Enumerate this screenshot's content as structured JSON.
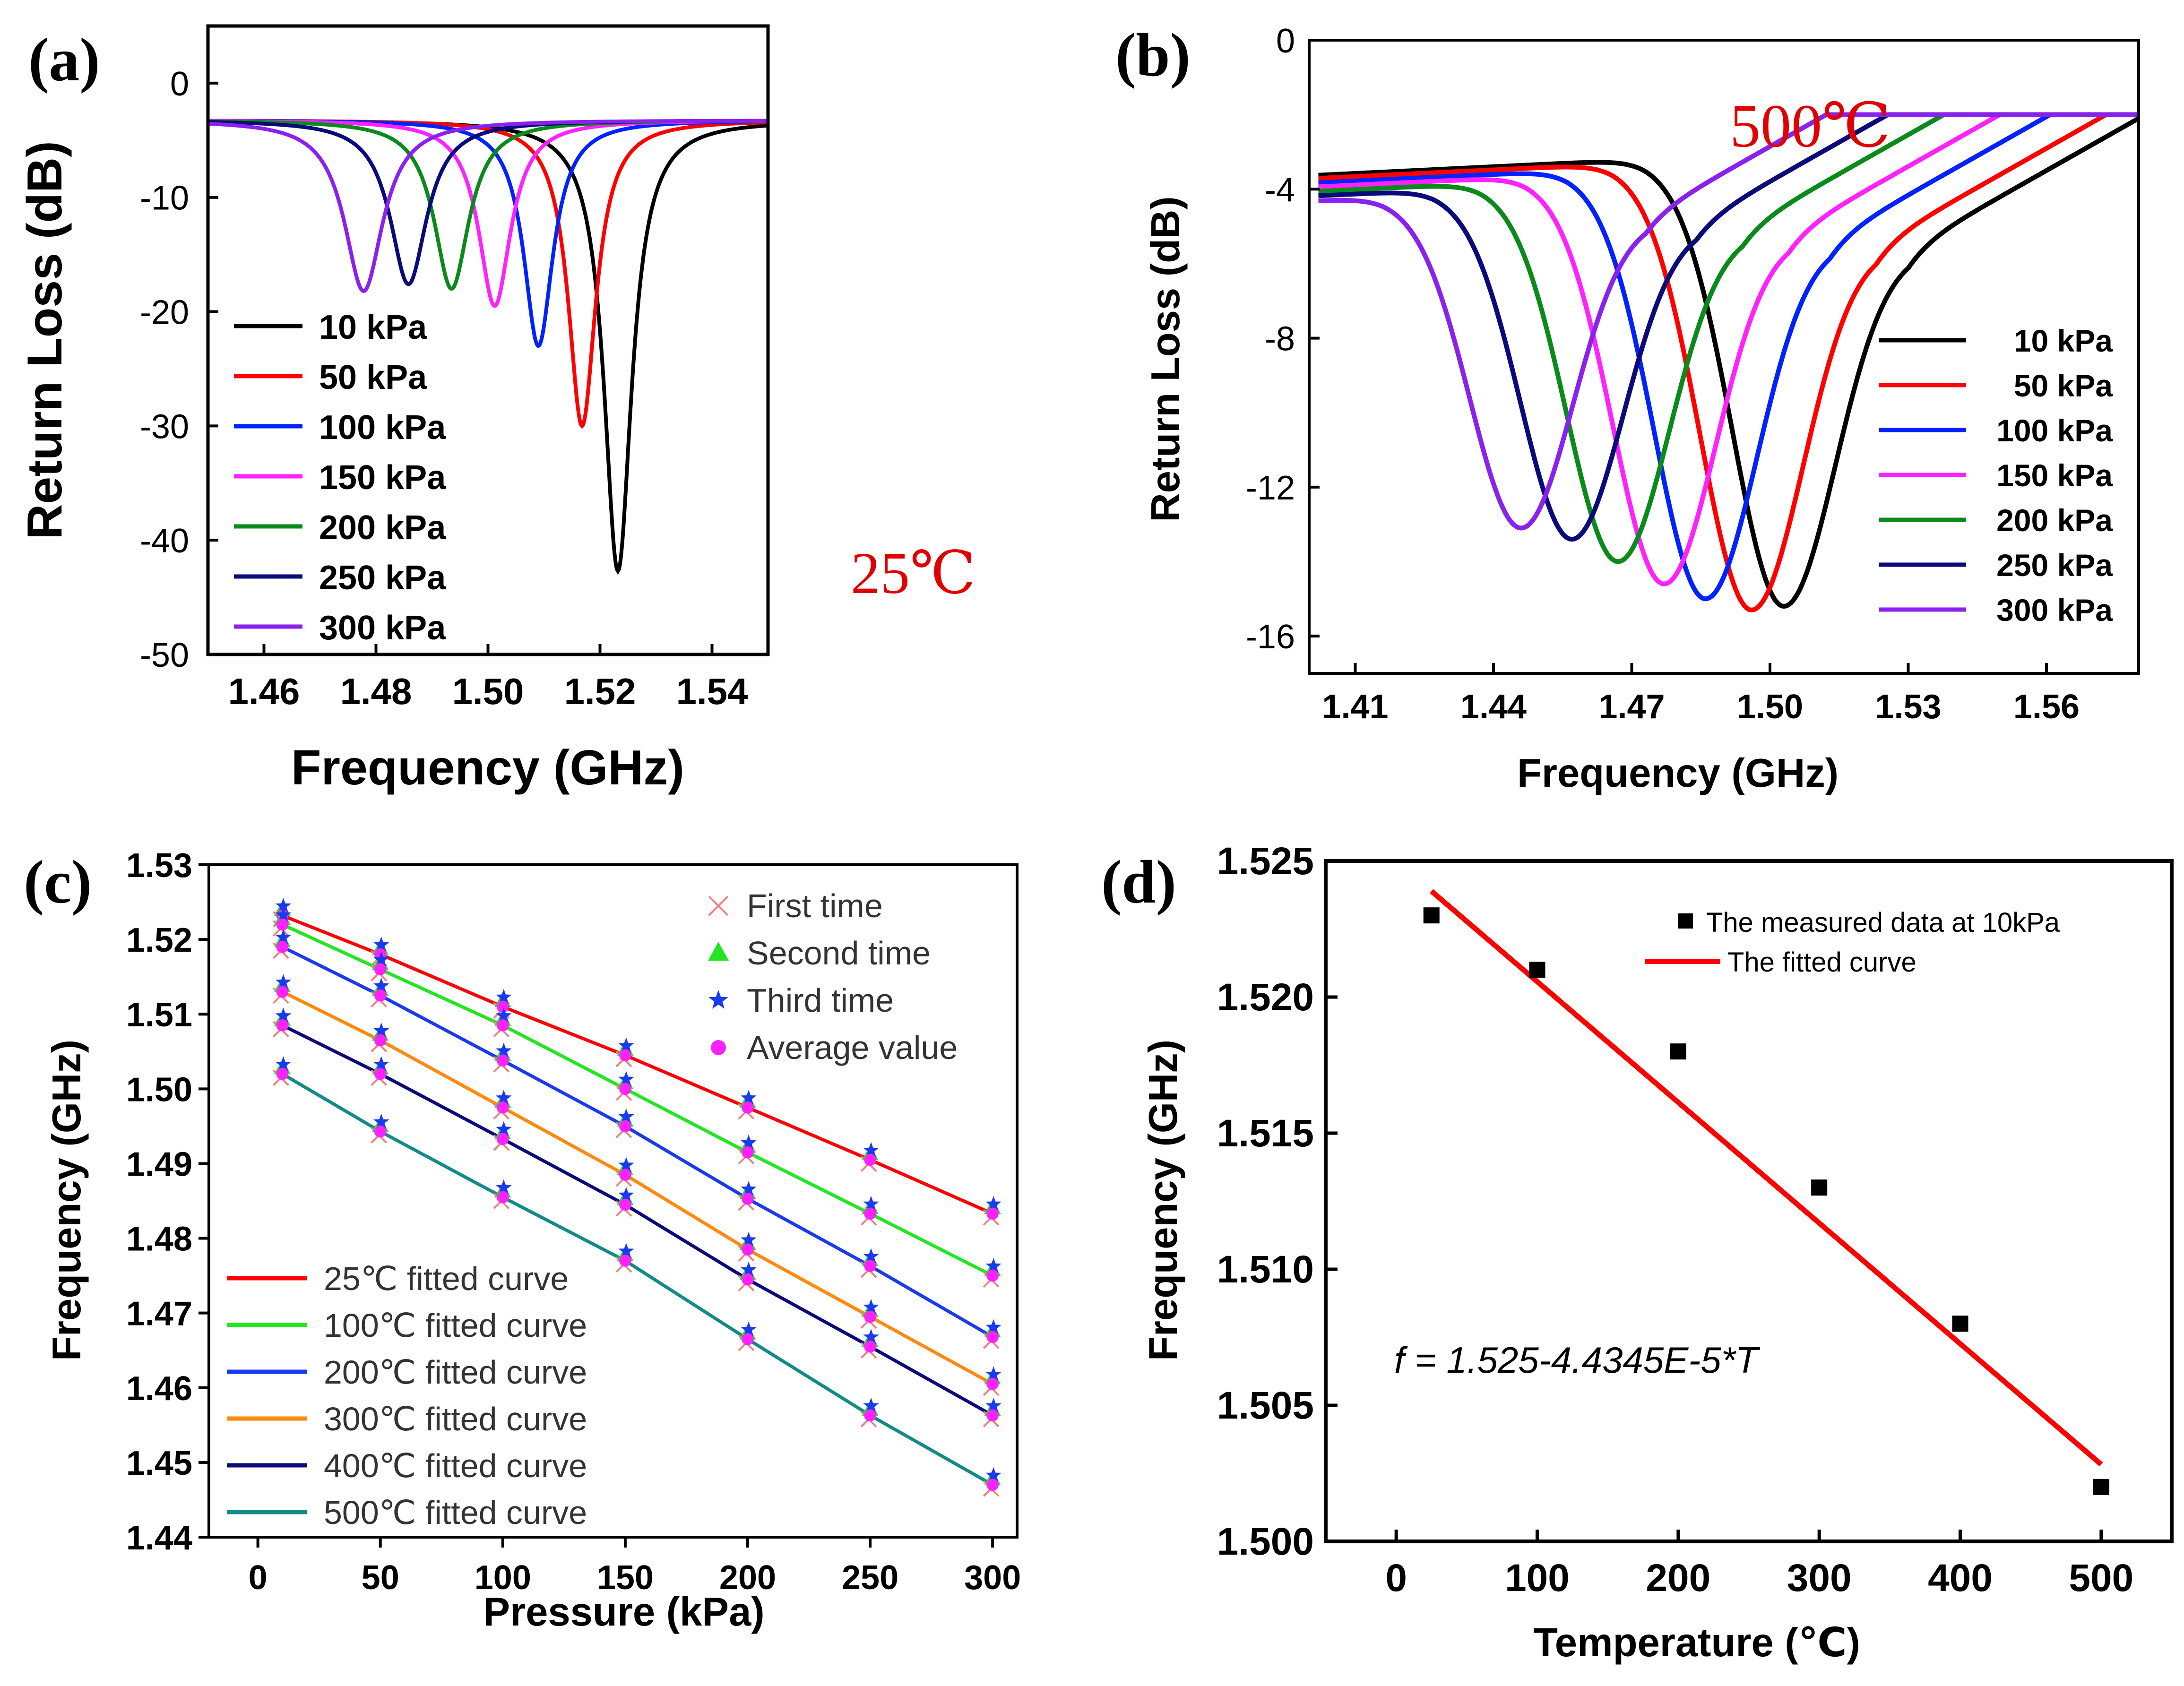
{
  "panels": [
    "(a)",
    "(b)",
    "(c)",
    "(d)"
  ],
  "colors": {
    "black": "#000000",
    "red": "#ff0000",
    "blue": "#0022ff",
    "magenta": "#ff22ff",
    "green": "#0a8a1a",
    "navy": "#0a0a7a",
    "purple": "#8a22ee",
    "lime": "#22e622",
    "royal": "#1a3aee",
    "orange": "#ff8a10",
    "teal": "#138a8a",
    "annotation": "#e00000"
  },
  "chart_data": [
    {
      "panel": "(a)",
      "type": "line",
      "xlabel": "Frequency (GHz)",
      "ylabel": "Return Loss (dB)",
      "xlim": [
        1.45,
        1.55
      ],
      "ylim": [
        -50,
        5
      ],
      "xticks": [
        "1.46",
        "1.48",
        "1.50",
        "1.52",
        "1.54"
      ],
      "yticks": [
        "0",
        "-10",
        "-20",
        "-30",
        "-40",
        "-50"
      ],
      "annotation": "25℃",
      "legend_position": "bottom-left",
      "series": [
        {
          "name": "10 kPa",
          "color": "#000000",
          "f0": 1.5232,
          "depth": -42.7,
          "baseline": -3.2,
          "width": 0.003
        },
        {
          "name": "50 kPa",
          "color": "#ff0000",
          "f0": 1.5168,
          "depth": -30.0,
          "baseline": -3.2,
          "width": 0.003
        },
        {
          "name": "100 kPa",
          "color": "#0022ff",
          "f0": 1.509,
          "depth": -23.0,
          "baseline": -3.2,
          "width": 0.0032
        },
        {
          "name": "150 kPa",
          "color": "#ff22ff",
          "f0": 1.5012,
          "depth": -19.5,
          "baseline": -3.2,
          "width": 0.0035
        },
        {
          "name": "200 kPa",
          "color": "#0a8a1a",
          "f0": 1.4935,
          "depth": -18.0,
          "baseline": -3.2,
          "width": 0.0038
        },
        {
          "name": "250 kPa",
          "color": "#0a0a7a",
          "f0": 1.4858,
          "depth": -17.6,
          "baseline": -3.2,
          "width": 0.004
        },
        {
          "name": "300 kPa",
          "color": "#8a22ee",
          "f0": 1.4778,
          "depth": -18.2,
          "baseline": -3.2,
          "width": 0.0042
        }
      ]
    },
    {
      "panel": "(b)",
      "type": "line",
      "xlabel": "Frequency (GHz)",
      "ylabel": "Return Loss (dB)",
      "xlim": [
        1.4,
        1.58
      ],
      "ylim": [
        -17,
        0
      ],
      "xticks": [
        "1.41",
        "1.44",
        "1.47",
        "1.50",
        "1.53",
        "1.56"
      ],
      "yticks": [
        "0",
        "-4",
        "-8",
        "-12",
        "-16"
      ],
      "annotation": "500℃",
      "legend_position": "bottom-right",
      "series": [
        {
          "name": "10 kPa",
          "color": "#000000",
          "f0": 1.503,
          "depth": -15.2,
          "w": 0.015
        },
        {
          "name": "50 kPa",
          "color": "#ff0000",
          "f0": 1.496,
          "depth": -15.3,
          "w": 0.015
        },
        {
          "name": "100 kPa",
          "color": "#0022ff",
          "f0": 1.486,
          "depth": -15.0,
          "w": 0.015
        },
        {
          "name": "150 kPa",
          "color": "#ff22ff",
          "f0": 1.477,
          "depth": -14.6,
          "w": 0.015
        },
        {
          "name": "200 kPa",
          "color": "#0a8a1a",
          "f0": 1.467,
          "depth": -14.0,
          "w": 0.015
        },
        {
          "name": "250 kPa",
          "color": "#0a0a7a",
          "f0": 1.457,
          "depth": -13.4,
          "w": 0.015
        },
        {
          "name": "300 kPa",
          "color": "#8a22ee",
          "f0": 1.446,
          "depth": -13.1,
          "w": 0.015
        }
      ]
    },
    {
      "panel": "(c)",
      "type": "scatter",
      "xlabel": "Pressure (kPa)",
      "ylabel": "Frequency (GHz)",
      "xlim": [
        -20,
        310
      ],
      "ylim": [
        1.44,
        1.53
      ],
      "xticks": [
        0,
        50,
        100,
        150,
        200,
        250,
        300
      ],
      "yticks": [
        "1.44",
        "1.45",
        "1.46",
        "1.47",
        "1.48",
        "1.49",
        "1.50",
        "1.51",
        "1.52",
        "1.53"
      ],
      "x": [
        10,
        50,
        100,
        150,
        200,
        250,
        300
      ],
      "marker_legend": [
        {
          "name": "First time",
          "marker": "x",
          "color": "#f08080"
        },
        {
          "name": "Second time",
          "marker": "triangle",
          "color": "#22e622"
        },
        {
          "name": "Third time",
          "marker": "star",
          "color": "#1a3aee"
        },
        {
          "name": "Average value",
          "marker": "circle",
          "color": "#ff22ff"
        }
      ],
      "fits": [
        {
          "name": "25℃ fitted curve",
          "color": "#ff0000",
          "y": [
            1.5232,
            1.518,
            1.511,
            1.5045,
            1.4975,
            1.4905,
            1.4833
          ]
        },
        {
          "name": "100℃ fitted curve",
          "color": "#22e622",
          "y": [
            1.522,
            1.516,
            1.5085,
            1.5,
            1.4915,
            1.4833,
            1.475
          ]
        },
        {
          "name": "200℃ fitted curve",
          "color": "#1a3aee",
          "y": [
            1.519,
            1.5125,
            1.5038,
            1.495,
            1.4853,
            1.4763,
            1.4668
          ]
        },
        {
          "name": "300℃ fitted curve",
          "color": "#ff8a10",
          "y": [
            1.513,
            1.5065,
            1.4975,
            1.4885,
            1.4785,
            1.4695,
            1.4605
          ]
        },
        {
          "name": "400℃ fitted curve",
          "color": "#0a0a7a",
          "y": [
            1.5085,
            1.502,
            1.4933,
            1.4845,
            1.4745,
            1.4655,
            1.4563
          ]
        },
        {
          "name": "500℃ fitted curve",
          "color": "#138a8a",
          "y": [
            1.502,
            1.4943,
            1.4855,
            1.477,
            1.4665,
            1.4563,
            1.447
          ]
        }
      ]
    },
    {
      "panel": "(d)",
      "type": "scatter",
      "xlabel": "Temperature (℃)",
      "ylabel": "Frequency (GHz)",
      "xlim": [
        -50,
        550
      ],
      "ylim": [
        1.5,
        1.525
      ],
      "xticks": [
        0,
        100,
        200,
        300,
        400,
        500
      ],
      "yticks": [
        "1.500",
        "1.505",
        "1.510",
        "1.515",
        "1.520",
        "1.525"
      ],
      "points": {
        "x": [
          25,
          100,
          200,
          300,
          400,
          500
        ],
        "y": [
          1.523,
          1.521,
          1.518,
          1.513,
          1.508,
          1.502
        ]
      },
      "fit": {
        "x": [
          25,
          500
        ],
        "intercept": 1.525,
        "slope": -4.4345e-05
      },
      "legend": [
        "The measured data at 10kPa",
        "The fitted curve"
      ],
      "equation": "f = 1.525-4.4345E-5*T"
    }
  ]
}
